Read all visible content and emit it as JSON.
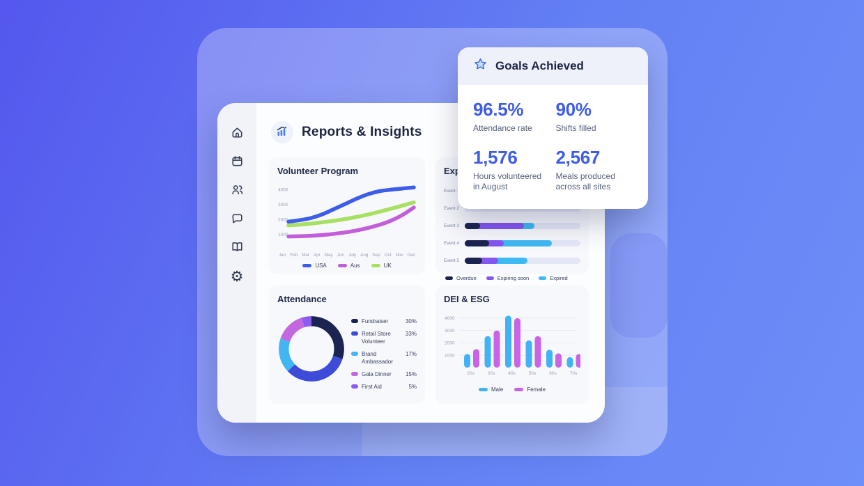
{
  "colors": {
    "background_from": "#5457ee",
    "background_to": "#6f8ef7",
    "accent_blue": "#3f5ce9",
    "navy_text": "#1d2541",
    "axis_text": "#98a0b6",
    "bar_track": "#e4e7f6"
  },
  "sidebar": {
    "items": [
      {
        "icon": "home-icon"
      },
      {
        "icon": "calendar-icon"
      },
      {
        "icon": "users-icon"
      },
      {
        "icon": "chat-icon"
      },
      {
        "icon": "book-icon"
      },
      {
        "icon": "gear-icon"
      }
    ]
  },
  "header": {
    "icon": "bar-chart-icon",
    "title": "Reports & Insights"
  },
  "goals": {
    "icon": "star-icon",
    "title": "Goals Achieved",
    "stats": [
      {
        "value": "96.5%",
        "label": "Attendance rate"
      },
      {
        "value": "90%",
        "label": "Shifts filled"
      },
      {
        "value": "1,576",
        "label": "Hours volunteered in August"
      },
      {
        "value": "2,567",
        "label": "Meals produced across all sites"
      }
    ]
  },
  "chart_data": [
    {
      "id": "volunteer",
      "type": "line",
      "title": "Volunteer Program",
      "x": [
        "Jan",
        "Feb",
        "Mar",
        "Apr",
        "May",
        "Jun",
        "July",
        "Aug",
        "Sep",
        "Oct",
        "Nov",
        "Dec"
      ],
      "yticks": [
        1000,
        2000,
        3000,
        4000
      ],
      "ylim": [
        600,
        4300
      ],
      "grid": false,
      "legend_position": "bottom",
      "series": [
        {
          "name": "USA",
          "color": "#3b5de8",
          "values": [
            1850,
            1950,
            2100,
            2350,
            2700,
            3050,
            3400,
            3700,
            3900,
            4000,
            4080,
            4150
          ]
        },
        {
          "name": "Aus",
          "color": "#c25fd8",
          "values": [
            850,
            870,
            900,
            950,
            1030,
            1130,
            1260,
            1430,
            1640,
            1920,
            2300,
            2800
          ]
        },
        {
          "name": "UK",
          "color": "#a8e063",
          "values": [
            1600,
            1650,
            1720,
            1810,
            1910,
            2030,
            2170,
            2330,
            2520,
            2720,
            2930,
            3150
          ]
        }
      ]
    },
    {
      "id": "expiring",
      "type": "bar",
      "orientation": "horizontal-stacked",
      "title": "Exp",
      "categories": [
        "Event 1",
        "Event 2",
        "Event 3",
        "Event 4",
        "Event 5"
      ],
      "series_names": [
        "Overdue",
        "Expiring soon",
        "Expired"
      ],
      "series_colors": [
        "#1b2350",
        "#8456f0",
        "#3eb9f2"
      ],
      "rows_pct": [
        [],
        [],
        [
          13,
          38,
          9
        ],
        [
          21,
          13,
          41
        ],
        [
          15,
          14,
          25
        ]
      ],
      "legend_position": "bottom"
    },
    {
      "id": "attendance",
      "type": "pie",
      "title": "Attendance",
      "slices": [
        {
          "label": "Fundraiser",
          "pct": 30,
          "pct_label": "30%",
          "color": "#1b2350"
        },
        {
          "label": "Retail Store Volunteer",
          "pct": 33,
          "pct_label": "33%",
          "color": "#3d4bd8"
        },
        {
          "label": "Brand Ambassador",
          "pct": 17,
          "pct_label": "17%",
          "color": "#41b6f2"
        },
        {
          "label": "Gala Dinner",
          "pct": 15,
          "pct_label": "15%",
          "color": "#c468e0"
        },
        {
          "label": "First Aid",
          "pct": 5,
          "pct_label": "5%",
          "color": "#8a5cf0"
        }
      ],
      "legend_position": "right"
    },
    {
      "id": "dei",
      "type": "bar",
      "title": "DEI & ESG",
      "categories": [
        "20s",
        "30s",
        "40s",
        "50s",
        "60s",
        "70s"
      ],
      "yticks": [
        1000,
        2000,
        3000,
        4000
      ],
      "ylim": [
        0,
        4500
      ],
      "grid": true,
      "legend_position": "bottom",
      "series": [
        {
          "name": "Male",
          "color": "#41b3f5",
          "values": [
            1100,
            2550,
            4200,
            2200,
            1450,
            850
          ]
        },
        {
          "name": "Female",
          "color": "#c964e8",
          "values": [
            1500,
            3000,
            4000,
            2550,
            1150,
            1100
          ]
        }
      ]
    }
  ]
}
